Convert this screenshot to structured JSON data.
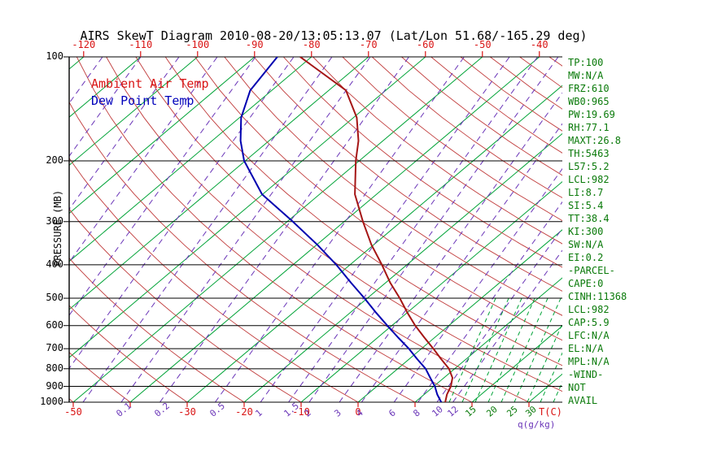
{
  "title": "AIRS SkewT Diagram 2010-08-20/13:05:13.07 (Lat/Lon 51.68/-165.29 deg)",
  "legend": {
    "ambient": "Ambient Air Temp",
    "dewpoint": "Dew Point Temp"
  },
  "y_axis": {
    "label": "PRESSURE (MB)",
    "ticks": [
      100,
      200,
      300,
      400,
      500,
      600,
      700,
      800,
      900,
      1000
    ]
  },
  "x_axis_top": {
    "ticks": [
      -120,
      -110,
      -100,
      -90,
      -80,
      -70,
      -60,
      -50,
      -40
    ]
  },
  "x_axis_bottom": {
    "temp_ticks": [
      -50,
      -30,
      -20,
      -10,
      0
    ],
    "temp_unit": "T(C)",
    "mixing_ratio_ticks": [
      0.1,
      0.2,
      0.5,
      1,
      1.5,
      2,
      3,
      4,
      6,
      8,
      10,
      12
    ],
    "mixing_ratio_green_ticks": [
      15,
      20,
      25,
      30
    ],
    "mixing_ratio_unit": "q(g/kg)"
  },
  "stats_panel": [
    "TP:100",
    "MW:N/A",
    "FRZ:610",
    "WB0:965",
    "PW:19.69",
    "RH:77.1",
    "MAXT:26.8",
    "TH:5463",
    "L57:5.2",
    "LCL:982",
    "LI:8.7",
    "SI:5.4",
    "TT:38.4",
    "KI:300",
    "SW:N/A",
    "EI:0.2",
    "-PARCEL-",
    "CAPE:0",
    "CINH:11368",
    "LCL:982",
    "CAP:5.9",
    "LFC:N/A",
    "EL:N/A",
    "MPL:N/A",
    "-WIND-",
    "NOT",
    "AVAIL"
  ],
  "colors": {
    "green_grid": "#00a337",
    "red_grid": "#c03a3a",
    "purple_grid": "#6a35b8",
    "pressure_line": "#000000",
    "ambient": "#a51515",
    "dewpoint": "#0000b0",
    "label_red": "#d91414",
    "label_green": "#0a7a0a",
    "label_purple": "#6a35b8"
  },
  "chart_data": {
    "type": "line",
    "x": "temperature_C (45-degree skewed axis)",
    "y": "pressure_mb (logarithmic, 100 top to 1000 bottom)",
    "y_range": [
      100,
      1000
    ],
    "grid": {
      "isotherms_green_solid_stepC": 10,
      "dry_adiabats_red_solid_stepC": 10,
      "mixing_ratio_purple_dashed_g_per_kg": [
        0.1,
        0.2,
        0.5,
        1,
        1.5,
        2,
        3,
        4,
        6,
        8,
        10,
        12
      ],
      "mixing_ratio_green_dashed_g_per_kg": [
        15,
        20,
        25,
        30
      ]
    },
    "series": [
      {
        "name": "Ambient Air Temp",
        "points_p_t": [
          [
            100,
            -82
          ],
          [
            125,
            -67
          ],
          [
            150,
            -59.4
          ],
          [
            175,
            -54.3
          ],
          [
            200,
            -50.6
          ],
          [
            250,
            -43.8
          ],
          [
            300,
            -36.7
          ],
          [
            350,
            -30.4
          ],
          [
            400,
            -24.4
          ],
          [
            450,
            -19.3
          ],
          [
            500,
            -14.3
          ],
          [
            550,
            -10
          ],
          [
            600,
            -5.9
          ],
          [
            650,
            -1.8
          ],
          [
            700,
            2.1
          ],
          [
            750,
            5.6
          ],
          [
            800,
            9
          ],
          [
            850,
            11.5
          ],
          [
            900,
            13
          ],
          [
            950,
            14
          ],
          [
            1000,
            15.3
          ]
        ]
      },
      {
        "name": "Dew Point Temp",
        "points_p_t": [
          [
            100,
            -86
          ],
          [
            125,
            -83.8
          ],
          [
            150,
            -79.7
          ],
          [
            175,
            -75
          ],
          [
            200,
            -70.2
          ],
          [
            250,
            -60.1
          ],
          [
            300,
            -49
          ],
          [
            350,
            -39.9
          ],
          [
            400,
            -32.4
          ],
          [
            450,
            -26.2
          ],
          [
            500,
            -20.5
          ],
          [
            550,
            -15.5
          ],
          [
            600,
            -10.8
          ],
          [
            650,
            -6.4
          ],
          [
            700,
            -2.2
          ],
          [
            750,
            1.4
          ],
          [
            800,
            4.9
          ],
          [
            850,
            7.6
          ],
          [
            900,
            10.2
          ],
          [
            950,
            12.3
          ],
          [
            1000,
            14.6
          ]
        ]
      }
    ]
  }
}
